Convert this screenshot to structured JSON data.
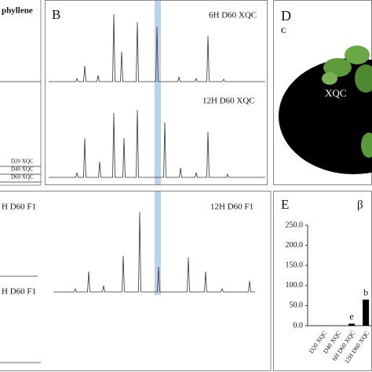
{
  "panel_a": {
    "title_fragment": "phyllene",
    "traces": [
      "D20 XQC",
      "D40 XQC",
      "D60 XQC"
    ]
  },
  "panel_b": {
    "label": "B",
    "traces": [
      "6H D60 XQC",
      "12H D60 XQC"
    ]
  },
  "panel_c": {
    "traces": [
      "H D60 F1",
      "12H D60 F1",
      "H D60 F1"
    ]
  },
  "panel_d": {
    "label": "D",
    "sublabel": "C",
    "plant_label": "XQC"
  },
  "panel_e": {
    "label": "E",
    "title_fragment": "β",
    "ylim": [
      0,
      250
    ],
    "yticks": [
      {
        "value": 0,
        "label": "0.0"
      },
      {
        "value": 50,
        "label": "50.0"
      },
      {
        "value": 100,
        "label": "100.0"
      },
      {
        "value": 150,
        "label": "150.0"
      },
      {
        "value": 200,
        "label": "200.0"
      },
      {
        "value": 250,
        "label": "250.0"
      }
    ],
    "categories": [
      "D20 XQC",
      "D40 XQC",
      "6H D60 XQC",
      "12H D60 XQC"
    ],
    "values": [
      0.3,
      0.3,
      5,
      65
    ],
    "significance": [
      null,
      null,
      "e",
      "b"
    ]
  }
}
